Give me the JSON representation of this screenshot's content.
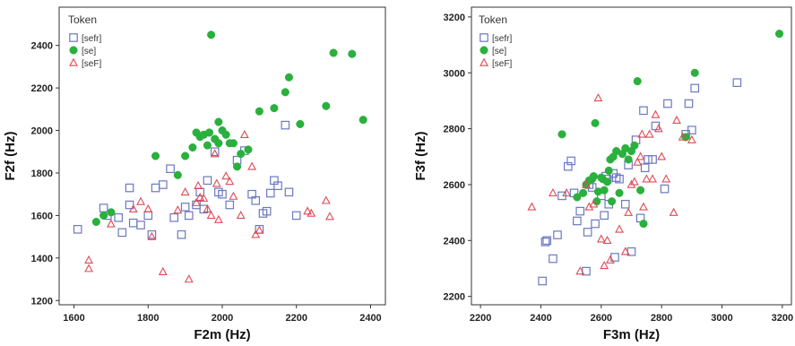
{
  "chart_data": [
    {
      "type": "scatter",
      "xlabel": "F2m (Hz)",
      "ylabel": "F2f (Hz)",
      "xlim": [
        1560,
        2440
      ],
      "ylim": [
        1180,
        2580
      ],
      "x_ticks": [
        1600,
        1800,
        2000,
        2200,
        2400
      ],
      "y_ticks": [
        1200,
        1400,
        1600,
        1800,
        2000,
        2200,
        2400
      ],
      "grid": false,
      "legend": {
        "title": "Token",
        "placement": "top-left",
        "items": [
          {
            "label": "[sefr]",
            "marker": "square",
            "color": "#6b78c0"
          },
          {
            "label": "[se]",
            "marker": "circle",
            "color": "#2ab03d"
          },
          {
            "label": "[seF]",
            "marker": "triangle",
            "color": "#e04a55"
          }
        ]
      },
      "series": [
        {
          "name": "[sefr]",
          "marker": "square",
          "color": "#6b78c0",
          "points": [
            [
              1610,
              1535
            ],
            [
              1680,
              1635
            ],
            [
              1690,
              1600
            ],
            [
              1720,
              1590
            ],
            [
              1730,
              1520
            ],
            [
              1750,
              1730
            ],
            [
              1750,
              1650
            ],
            [
              1760,
              1565
            ],
            [
              1780,
              1555
            ],
            [
              1800,
              1600
            ],
            [
              1810,
              1510
            ],
            [
              1820,
              1730
            ],
            [
              1840,
              1745
            ],
            [
              1860,
              1820
            ],
            [
              1870,
              1590
            ],
            [
              1890,
              1510
            ],
            [
              1900,
              1640
            ],
            [
              1910,
              1600
            ],
            [
              1930,
              1650
            ],
            [
              1940,
              1710
            ],
            [
              1950,
              1630
            ],
            [
              1960,
              1765
            ],
            [
              1980,
              1900
            ],
            [
              1990,
              1710
            ],
            [
              2000,
              1700
            ],
            [
              2020,
              1650
            ],
            [
              2040,
              1860
            ],
            [
              2060,
              1905
            ],
            [
              2080,
              1700
            ],
            [
              2090,
              1670
            ],
            [
              2100,
              1535
            ],
            [
              2110,
              1610
            ],
            [
              2120,
              1620
            ],
            [
              2130,
              1705
            ],
            [
              2140,
              1765
            ],
            [
              2150,
              1740
            ],
            [
              2170,
              2025
            ],
            [
              2180,
              1710
            ],
            [
              2200,
              1600
            ]
          ]
        },
        {
          "name": "[se]",
          "marker": "circle",
          "color": "#2ab03d",
          "points": [
            [
              1660,
              1570
            ],
            [
              1680,
              1600
            ],
            [
              1700,
              1615
            ],
            [
              1820,
              1880
            ],
            [
              1880,
              1790
            ],
            [
              1900,
              1880
            ],
            [
              1920,
              1920
            ],
            [
              1930,
              1990
            ],
            [
              1940,
              1970
            ],
            [
              1950,
              1980
            ],
            [
              1960,
              1930
            ],
            [
              1965,
              1990
            ],
            [
              1970,
              2450
            ],
            [
              1980,
              1960
            ],
            [
              1990,
              2040
            ],
            [
              1990,
              1940
            ],
            [
              2000,
              2000
            ],
            [
              2010,
              1980
            ],
            [
              2020,
              1940
            ],
            [
              2030,
              1940
            ],
            [
              2040,
              1830
            ],
            [
              2050,
              1890
            ],
            [
              2070,
              1910
            ],
            [
              2100,
              2090
            ],
            [
              2140,
              2105
            ],
            [
              2170,
              2180
            ],
            [
              2180,
              2250
            ],
            [
              2210,
              2030
            ],
            [
              2280,
              2115
            ],
            [
              2300,
              2365
            ],
            [
              2350,
              2360
            ],
            [
              2380,
              2050
            ]
          ]
        },
        {
          "name": "[seF]",
          "marker": "triangle",
          "color": "#e04a55",
          "points": [
            [
              1640,
              1390
            ],
            [
              1640,
              1350
            ],
            [
              1700,
              1560
            ],
            [
              1760,
              1630
            ],
            [
              1780,
              1665
            ],
            [
              1800,
              1630
            ],
            [
              1810,
              1500
            ],
            [
              1840,
              1335
            ],
            [
              1880,
              1625
            ],
            [
              1900,
              1710
            ],
            [
              1910,
              1300
            ],
            [
              1930,
              1660
            ],
            [
              1935,
              1740
            ],
            [
              1940,
              1685
            ],
            [
              1950,
              1680
            ],
            [
              1960,
              1630
            ],
            [
              1970,
              1600
            ],
            [
              1980,
              1890
            ],
            [
              1985,
              1750
            ],
            [
              1990,
              1580
            ],
            [
              2010,
              1785
            ],
            [
              2020,
              1760
            ],
            [
              2030,
              1690
            ],
            [
              2050,
              1600
            ],
            [
              2060,
              1980
            ],
            [
              2080,
              1830
            ],
            [
              2090,
              1510
            ],
            [
              2100,
              1530
            ],
            [
              2230,
              1620
            ],
            [
              2240,
              1610
            ],
            [
              2280,
              1670
            ],
            [
              2290,
              1595
            ]
          ]
        }
      ]
    },
    {
      "type": "scatter",
      "xlabel": "F3m (Hz)",
      "ylabel": "F3f (Hz)",
      "xlim": [
        2170,
        3230
      ],
      "ylim": [
        2170,
        3235
      ],
      "x_ticks": [
        2200,
        2400,
        2600,
        2800,
        3000,
        3200
      ],
      "y_ticks": [
        2200,
        2400,
        2600,
        2800,
        3000,
        3200
      ],
      "grid": false,
      "legend": {
        "title": "Token",
        "placement": "top-left",
        "items": [
          {
            "label": "[sefr]",
            "marker": "square",
            "color": "#6b78c0"
          },
          {
            "label": "[se]",
            "marker": "circle",
            "color": "#2ab03d"
          },
          {
            "label": "[seF]",
            "marker": "triangle",
            "color": "#e04a55"
          }
        ]
      },
      "series": [
        {
          "name": "[sefr]",
          "marker": "square",
          "color": "#6b78c0",
          "points": [
            [
              2405,
              2255
            ],
            [
              2415,
              2395
            ],
            [
              2420,
              2400
            ],
            [
              2440,
              2335
            ],
            [
              2455,
              2420
            ],
            [
              2470,
              2560
            ],
            [
              2490,
              2665
            ],
            [
              2500,
              2685
            ],
            [
              2510,
              2570
            ],
            [
              2520,
              2470
            ],
            [
              2530,
              2505
            ],
            [
              2550,
              2290
            ],
            [
              2555,
              2430
            ],
            [
              2560,
              2600
            ],
            [
              2570,
              2590
            ],
            [
              2580,
              2460
            ],
            [
              2600,
              2560
            ],
            [
              2610,
              2490
            ],
            [
              2615,
              2630
            ],
            [
              2620,
              2620
            ],
            [
              2625,
              2530
            ],
            [
              2640,
              2640
            ],
            [
              2645,
              2340
            ],
            [
              2650,
              2625
            ],
            [
              2660,
              2620
            ],
            [
              2680,
              2530
            ],
            [
              2690,
              2670
            ],
            [
              2700,
              2360
            ],
            [
              2715,
              2760
            ],
            [
              2730,
              2480
            ],
            [
              2740,
              2865
            ],
            [
              2745,
              2660
            ],
            [
              2755,
              2690
            ],
            [
              2770,
              2690
            ],
            [
              2780,
              2810
            ],
            [
              2810,
              2585
            ],
            [
              2820,
              2890
            ],
            [
              2880,
              2780
            ],
            [
              2890,
              2890
            ],
            [
              2900,
              2795
            ],
            [
              2910,
              2945
            ],
            [
              3050,
              2965
            ]
          ]
        },
        {
          "name": "[se]",
          "marker": "circle",
          "color": "#2ab03d",
          "points": [
            [
              2470,
              2780
            ],
            [
              2520,
              2555
            ],
            [
              2540,
              2570
            ],
            [
              2550,
              2600
            ],
            [
              2560,
              2615
            ],
            [
              2570,
              2620
            ],
            [
              2575,
              2630
            ],
            [
              2580,
              2820
            ],
            [
              2585,
              2540
            ],
            [
              2590,
              2575
            ],
            [
              2600,
              2625
            ],
            [
              2605,
              2620
            ],
            [
              2610,
              2580
            ],
            [
              2620,
              2610
            ],
            [
              2625,
              2650
            ],
            [
              2630,
              2690
            ],
            [
              2635,
              2540
            ],
            [
              2640,
              2700
            ],
            [
              2650,
              2720
            ],
            [
              2660,
              2570
            ],
            [
              2670,
              2710
            ],
            [
              2680,
              2730
            ],
            [
              2690,
              2690
            ],
            [
              2700,
              2720
            ],
            [
              2710,
              2740
            ],
            [
              2720,
              2970
            ],
            [
              2730,
              2580
            ],
            [
              2740,
              2460
            ],
            [
              2880,
              2770
            ],
            [
              2910,
              3000
            ],
            [
              3190,
              3140
            ]
          ]
        },
        {
          "name": "[seF]",
          "marker": "triangle",
          "color": "#e04a55",
          "points": [
            [
              2370,
              2520
            ],
            [
              2440,
              2570
            ],
            [
              2485,
              2570
            ],
            [
              2530,
              2290
            ],
            [
              2550,
              2600
            ],
            [
              2560,
              2520
            ],
            [
              2575,
              2530
            ],
            [
              2590,
              2910
            ],
            [
              2600,
              2405
            ],
            [
              2610,
              2310
            ],
            [
              2620,
              2400
            ],
            [
              2630,
              2330
            ],
            [
              2660,
              2440
            ],
            [
              2680,
              2360
            ],
            [
              2690,
              2500
            ],
            [
              2700,
              2600
            ],
            [
              2710,
              2610
            ],
            [
              2720,
              2680
            ],
            [
              2730,
              2700
            ],
            [
              2735,
              2780
            ],
            [
              2740,
              2520
            ],
            [
              2750,
              2620
            ],
            [
              2760,
              2780
            ],
            [
              2770,
              2620
            ],
            [
              2780,
              2850
            ],
            [
              2790,
              2800
            ],
            [
              2800,
              2700
            ],
            [
              2815,
              2620
            ],
            [
              2840,
              2500
            ],
            [
              2850,
              2830
            ],
            [
              2870,
              2770
            ],
            [
              2900,
              2760
            ]
          ]
        }
      ]
    }
  ]
}
